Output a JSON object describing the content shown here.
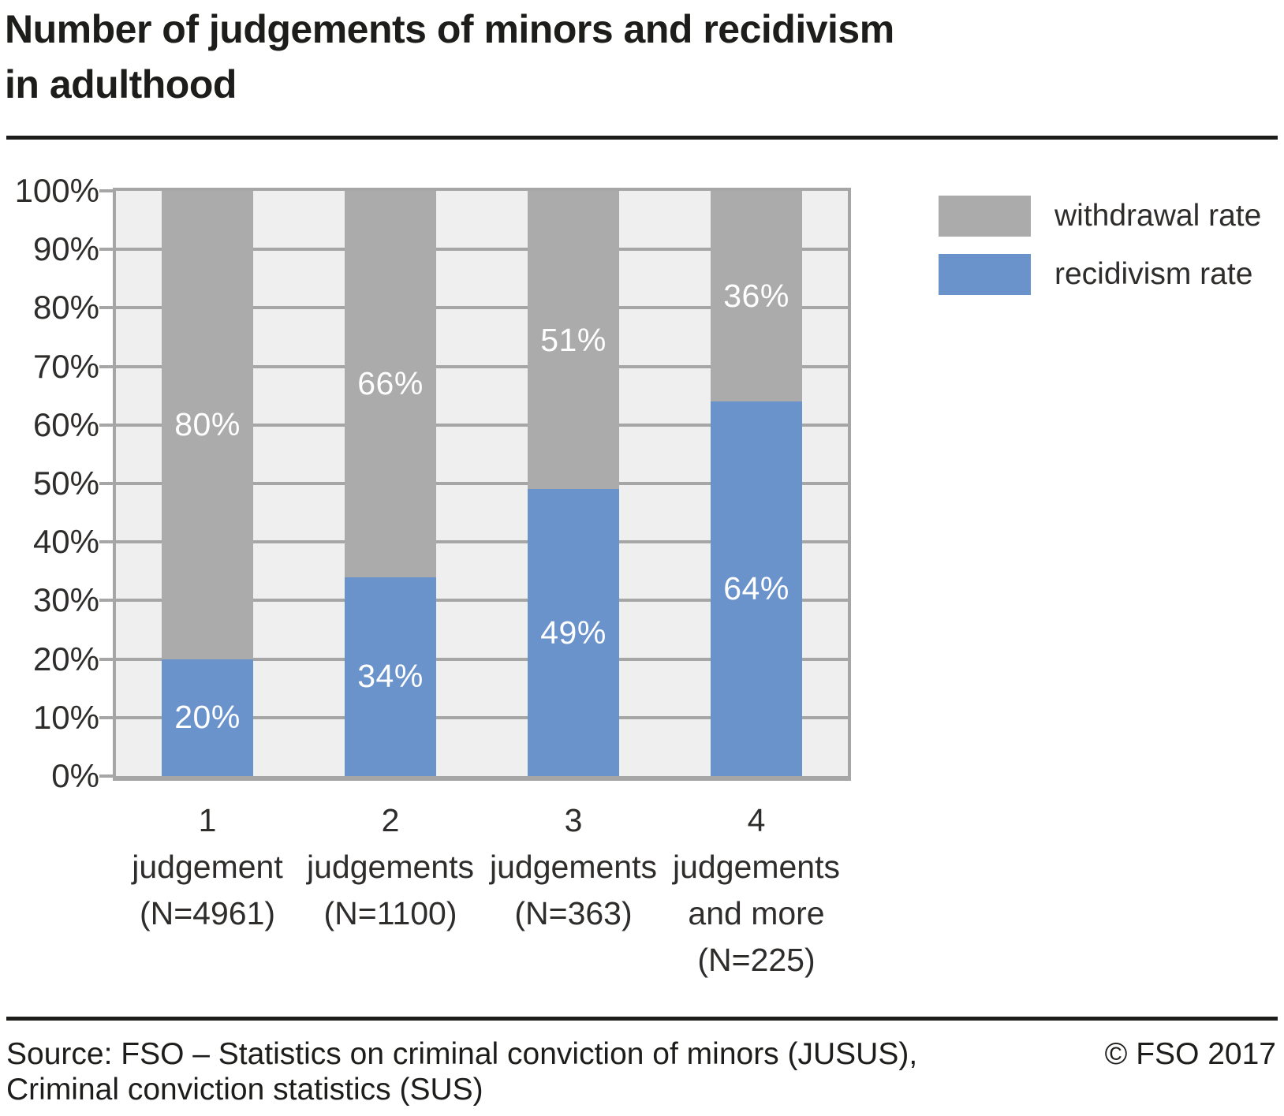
{
  "title": {
    "line1": "Number of judgements of minors and recidivism",
    "line2": "in adulthood"
  },
  "colors": {
    "withdrawal": "#ababab",
    "recidivism": "#6b93cb",
    "plot_background": "#efefef",
    "gridline": "#a6a6a6",
    "bar_label_text": "#ffffff",
    "rule": "#1d1d1b",
    "axis_text": "#2e2d2c"
  },
  "chart_data": {
    "type": "bar",
    "stacked": true,
    "title": "Number of judgements of minors and recidivism in adulthood",
    "categories": [
      "1 judgement (N=4961)",
      "2 judgements (N=1100)",
      "3 judgements (N=363)",
      "4 judgements and more (N=225)"
    ],
    "category_lines": [
      [
        "1",
        "judgement",
        "(N=4961)"
      ],
      [
        "2",
        "judgements",
        "(N=1100)"
      ],
      [
        "3",
        "judgements",
        "(N=363)"
      ],
      [
        "4",
        "judgements",
        "and more",
        "(N=225)"
      ]
    ],
    "series": [
      {
        "name": "withdrawal rate",
        "color": "#ababab",
        "values": [
          80,
          66,
          51,
          36
        ],
        "data_labels": [
          "80%",
          "66%",
          "51%",
          "36%"
        ]
      },
      {
        "name": "recidivism rate",
        "color": "#6b93cb",
        "values": [
          20,
          34,
          49,
          64
        ],
        "data_labels": [
          "20%",
          "34%",
          "49%",
          "64%"
        ]
      }
    ],
    "y_axis": {
      "unit": "%",
      "min": 0,
      "max": 100,
      "tick_step": 10,
      "tick_labels": [
        "0%",
        "10%",
        "20%",
        "30%",
        "40%",
        "50%",
        "60%",
        "70%",
        "80%",
        "90%",
        "100%"
      ]
    },
    "x_axis": {
      "label": ""
    },
    "grid": "horizontal",
    "legend_position": "top-right"
  },
  "legend": {
    "entries": [
      {
        "label": "withdrawal rate",
        "color": "#ababab"
      },
      {
        "label": "recidivism rate",
        "color": "#6b93cb"
      }
    ]
  },
  "footer": {
    "source_line1": "Source: FSO – Statistics on criminal conviction of minors (JUSUS),",
    "source_line2": "Criminal conviction statistics (SUS)",
    "copyright": "© FSO 2017"
  }
}
